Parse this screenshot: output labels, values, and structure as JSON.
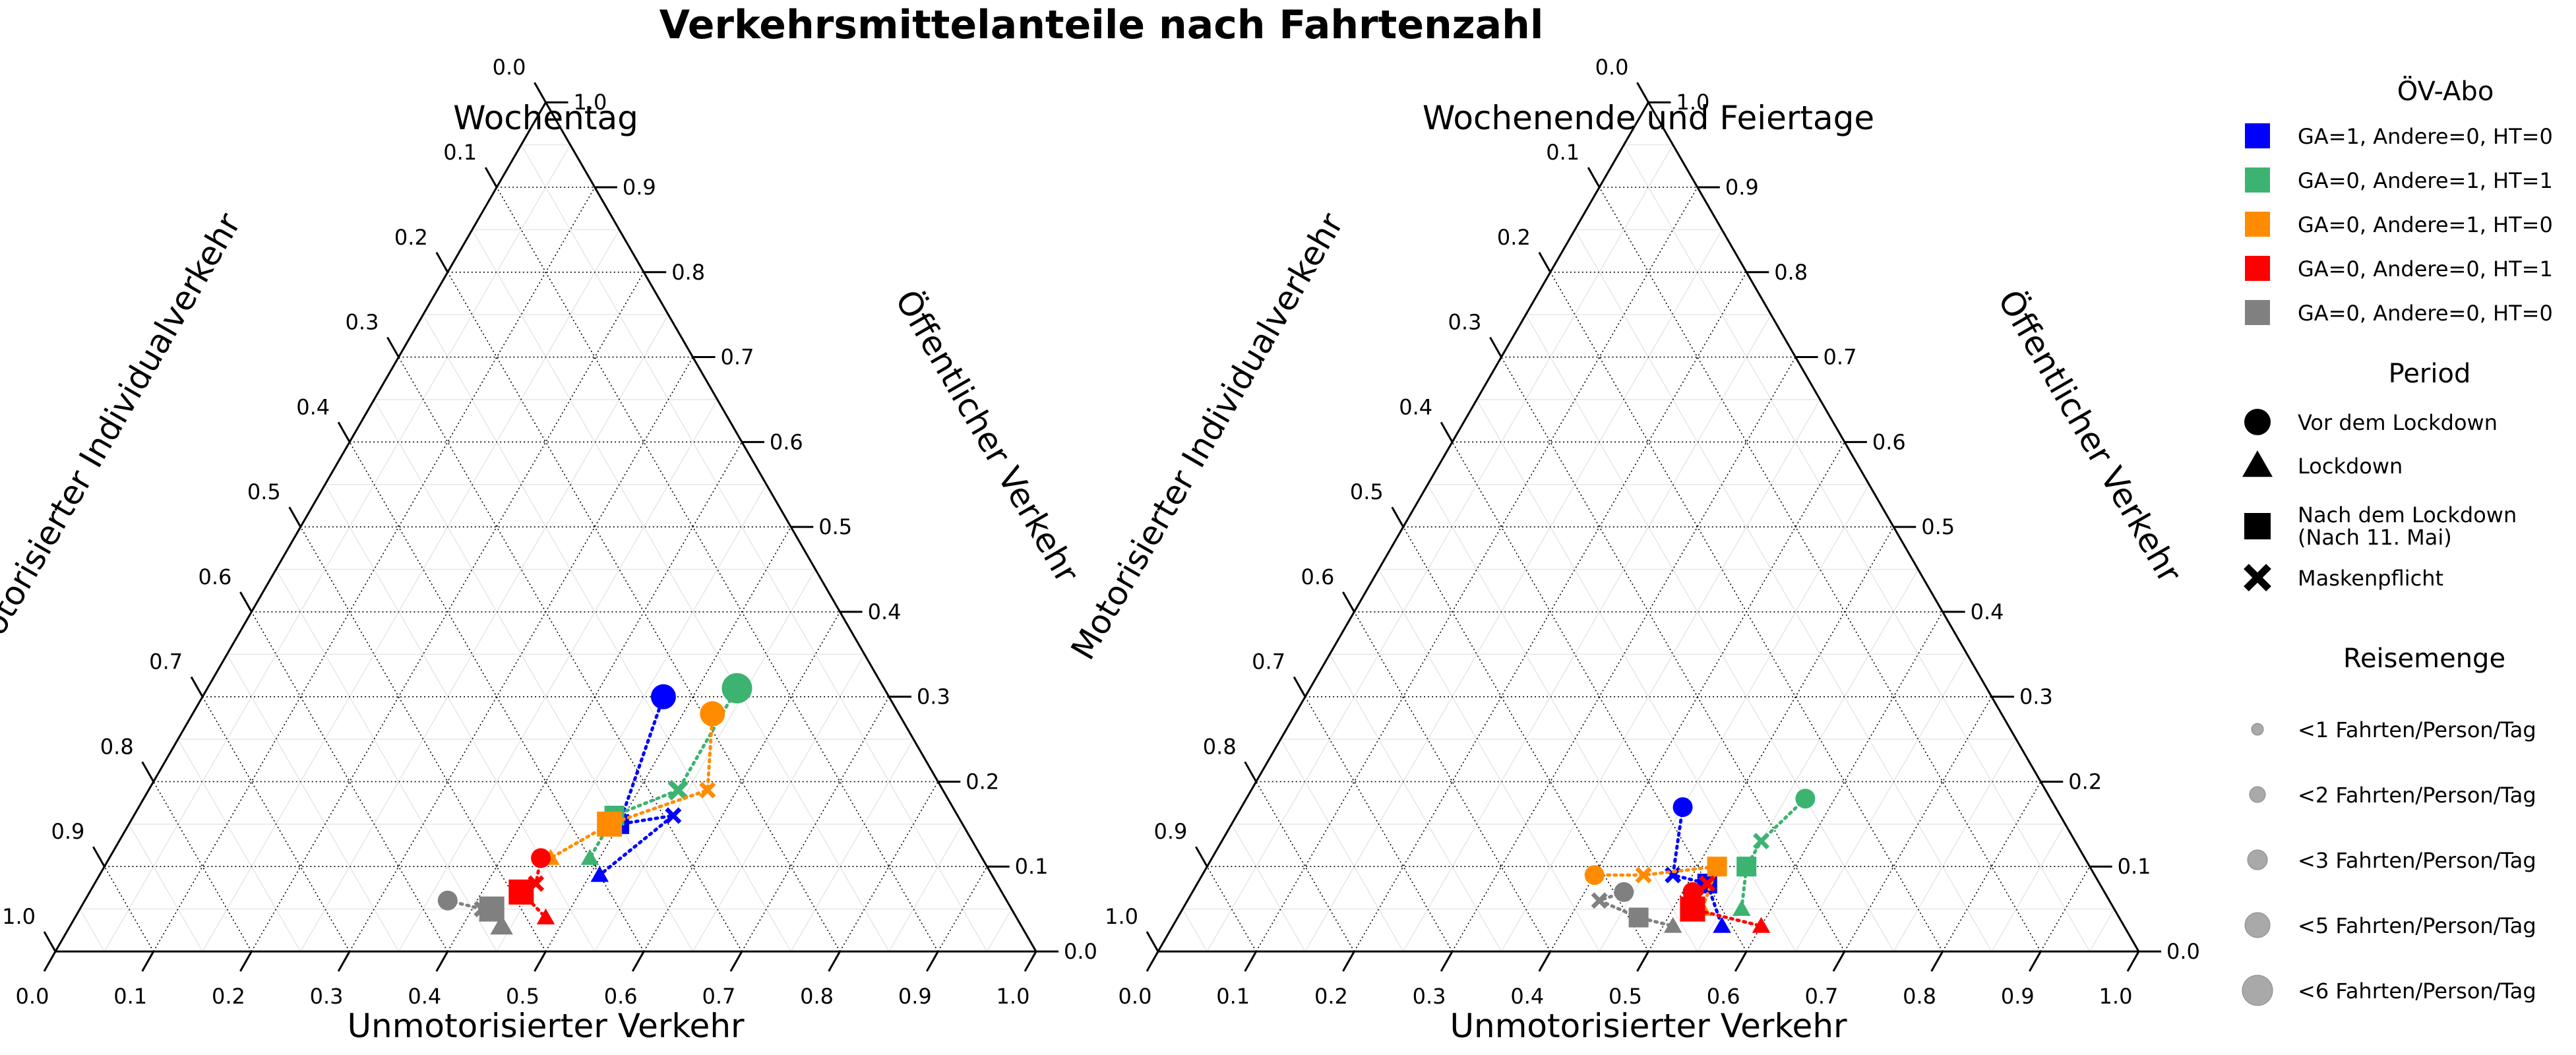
{
  "title": "Verkehrsmittelanteile nach Fahrtenzahl",
  "colors": {
    "GA=1, Andere=0, HT=0": "#0000ff",
    "GA=0, Andere=1, HT=1": "#3cb371",
    "GA=0, Andere=1, HT=0": "#ff8c00",
    "GA=0, Andere=0, HT=1": "#ff0000",
    "GA=0, Andere=0, HT=0": "#808080"
  },
  "chart_data": [
    {
      "type": "scatter",
      "subtype": "ternary",
      "title": "Wochentag",
      "axes": {
        "bottom": "Unmotorisierter Verkehr",
        "right": "Öffentlicher Verkehr",
        "left": "Motorisierter Individualverkehr",
        "ticks": [
          "0.0",
          "0.1",
          "0.2",
          "0.3",
          "0.4",
          "0.5",
          "0.6",
          "0.7",
          "0.8",
          "0.9",
          "1.0"
        ]
      },
      "grid": true,
      "series": [
        {
          "group": "GA=1, Andere=0, HT=0",
          "points": [
            {
              "period": "Vor dem Lockdown",
              "bottom": 0.47,
              "right": 0.3,
              "size": 4
            },
            {
              "period": "Nach dem Lockdown",
              "bottom": 0.5,
              "right": 0.15,
              "size": 3
            },
            {
              "period": "Maskenpflicht",
              "bottom": 0.55,
              "right": 0.16,
              "size": 2
            },
            {
              "period": "Lockdown",
              "bottom": 0.51,
              "right": 0.09,
              "size": 2
            }
          ]
        },
        {
          "group": "GA=0, Andere=1, HT=1",
          "points": [
            {
              "period": "Vor dem Lockdown",
              "bottom": 0.54,
              "right": 0.31,
              "size": 5
            },
            {
              "period": "Maskenpflicht",
              "bottom": 0.54,
              "right": 0.19,
              "size": 3
            },
            {
              "period": "Nach dem Lockdown",
              "bottom": 0.49,
              "right": 0.16,
              "size": 3
            },
            {
              "period": "Lockdown",
              "bottom": 0.49,
              "right": 0.11,
              "size": 2
            }
          ]
        },
        {
          "group": "GA=0, Andere=1, HT=0",
          "points": [
            {
              "period": "Vor dem Lockdown",
              "bottom": 0.53,
              "right": 0.28,
              "size": 4
            },
            {
              "period": "Maskenpflicht",
              "bottom": 0.57,
              "right": 0.19,
              "size": 2
            },
            {
              "period": "Nach dem Lockdown",
              "bottom": 0.49,
              "right": 0.15,
              "size": 4
            },
            {
              "period": "Lockdown",
              "bottom": 0.45,
              "right": 0.11,
              "size": 2
            }
          ]
        },
        {
          "group": "GA=0, Andere=0, HT=1",
          "points": [
            {
              "period": "Vor dem Lockdown",
              "bottom": 0.44,
              "right": 0.11,
              "size": 3
            },
            {
              "period": "Maskenpflicht",
              "bottom": 0.45,
              "right": 0.08,
              "size": 2
            },
            {
              "period": "Nach dem Lockdown",
              "bottom": 0.44,
              "right": 0.07,
              "size": 4
            },
            {
              "period": "Lockdown",
              "bottom": 0.48,
              "right": 0.04,
              "size": 2
            }
          ]
        },
        {
          "group": "GA=0, Andere=0, HT=0",
          "points": [
            {
              "period": "Vor dem Lockdown",
              "bottom": 0.37,
              "right": 0.06,
              "size": 3
            },
            {
              "period": "Maskenpflicht",
              "bottom": 0.41,
              "right": 0.05,
              "size": 2
            },
            {
              "period": "Nach dem Lockdown",
              "bottom": 0.42,
              "right": 0.05,
              "size": 4
            },
            {
              "period": "Lockdown",
              "bottom": 0.44,
              "right": 0.03,
              "size": 3
            }
          ]
        }
      ]
    },
    {
      "type": "scatter",
      "subtype": "ternary",
      "title": "Wochenende und Feiertage",
      "axes": {
        "bottom": "Unmotorisierter Verkehr",
        "right": "Öffentlicher Verkehr",
        "left": "Motorisierter Individualverkehr",
        "ticks": [
          "0.0",
          "0.1",
          "0.2",
          "0.3",
          "0.4",
          "0.5",
          "0.6",
          "0.7",
          "0.8",
          "0.9",
          "1.0"
        ]
      },
      "grid": true,
      "series": [
        {
          "group": "GA=1, Andere=0, HT=0",
          "points": [
            {
              "period": "Vor dem Lockdown",
              "bottom": 0.45,
              "right": 0.17,
              "size": 3
            },
            {
              "period": "Maskenpflicht",
              "bottom": 0.48,
              "right": 0.09,
              "size": 2
            },
            {
              "period": "Nach dem Lockdown",
              "bottom": 0.52,
              "right": 0.08,
              "size": 3
            },
            {
              "period": "Lockdown",
              "bottom": 0.56,
              "right": 0.03,
              "size": 2
            }
          ]
        },
        {
          "group": "GA=0, Andere=1, HT=1",
          "points": [
            {
              "period": "Vor dem Lockdown",
              "bottom": 0.57,
              "right": 0.18,
              "size": 3
            },
            {
              "period": "Maskenpflicht",
              "bottom": 0.55,
              "right": 0.13,
              "size": 2
            },
            {
              "period": "Nach dem Lockdown",
              "bottom": 0.55,
              "right": 0.1,
              "size": 3
            },
            {
              "period": "Lockdown",
              "bottom": 0.57,
              "right": 0.05,
              "size": 2
            }
          ]
        },
        {
          "group": "GA=0, Andere=1, HT=0",
          "points": [
            {
              "period": "Vor dem Lockdown",
              "bottom": 0.4,
              "right": 0.09,
              "size": 3
            },
            {
              "period": "Maskenpflicht",
              "bottom": 0.45,
              "right": 0.09,
              "size": 2
            },
            {
              "period": "Nach dem Lockdown",
              "bottom": 0.52,
              "right": 0.1,
              "size": 3
            },
            {
              "period": "Lockdown",
              "bottom": 0.53,
              "right": 0.05,
              "size": 2
            }
          ]
        },
        {
          "group": "GA=0, Andere=0, HT=1",
          "points": [
            {
              "period": "Vor dem Lockdown",
              "bottom": 0.51,
              "right": 0.07,
              "size": 3
            },
            {
              "period": "Maskenpflicht",
              "bottom": 0.52,
              "right": 0.08,
              "size": 2
            },
            {
              "period": "Nach dem Lockdown",
              "bottom": 0.52,
              "right": 0.05,
              "size": 4
            },
            {
              "period": "Lockdown",
              "bottom": 0.6,
              "right": 0.03,
              "size": 2
            }
          ]
        },
        {
          "group": "GA=0, Andere=0, HT=0",
          "points": [
            {
              "period": "Vor dem Lockdown",
              "bottom": 0.44,
              "right": 0.07,
              "size": 3
            },
            {
              "period": "Maskenpflicht",
              "bottom": 0.42,
              "right": 0.06,
              "size": 2
            },
            {
              "period": "Nach dem Lockdown",
              "bottom": 0.47,
              "right": 0.04,
              "size": 3
            },
            {
              "period": "Lockdown",
              "bottom": 0.51,
              "right": 0.03,
              "size": 2
            }
          ]
        }
      ]
    }
  ],
  "legend": {
    "groups_title": "ÖV-Abo",
    "groups": [
      "GA=1, Andere=0, HT=0",
      "GA=0, Andere=1, HT=1",
      "GA=0, Andere=1, HT=0",
      "GA=0, Andere=0, HT=1",
      "GA=0, Andere=0, HT=0"
    ],
    "period_title": "Period",
    "periods": [
      {
        "label": "Vor dem Lockdown",
        "marker": "circle"
      },
      {
        "label": "Lockdown",
        "marker": "triangle"
      },
      {
        "label": "Nach dem Lockdown",
        "label2": "(Nach 11. Mai)",
        "marker": "square"
      },
      {
        "label": "Maskenpflicht",
        "marker": "cross"
      }
    ],
    "size_title": "Reisemenge",
    "sizes": [
      {
        "label": "<1 Fahrten/Person/Tag",
        "size": 1
      },
      {
        "label": "<2 Fahrten/Person/Tag",
        "size": 2
      },
      {
        "label": "<3 Fahrten/Person/Tag",
        "size": 3
      },
      {
        "label": "<5 Fahrten/Person/Tag",
        "size": 4
      },
      {
        "label": "<6 Fahrten/Person/Tag",
        "size": 5
      }
    ]
  }
}
